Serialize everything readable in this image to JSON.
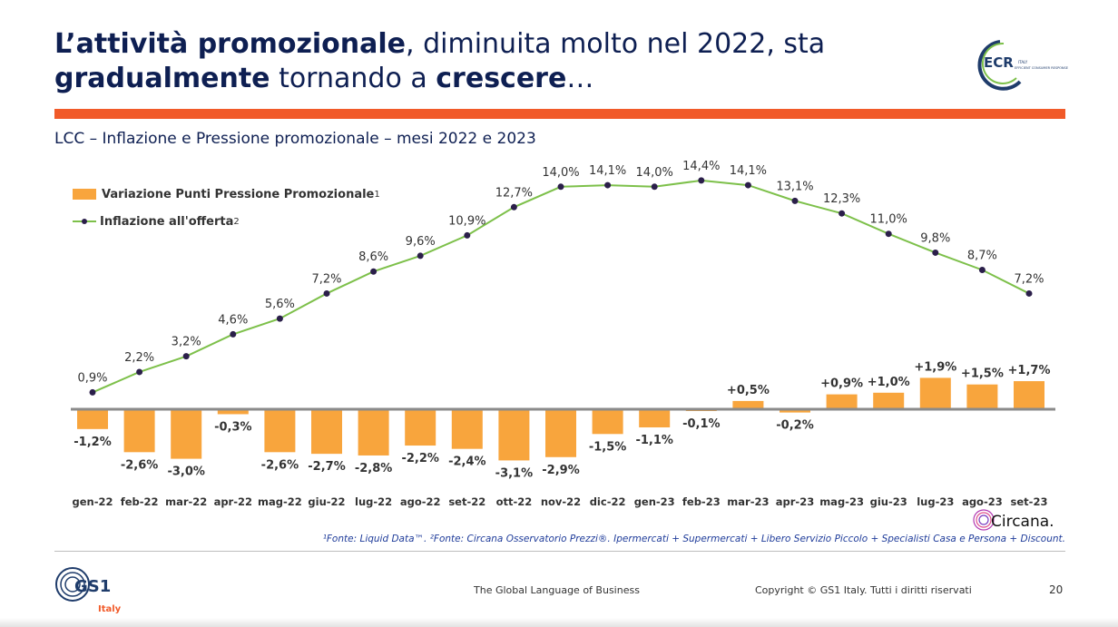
{
  "title": {
    "part1_bold": "L’attività promozionale",
    "part2": ", diminuita molto nel 2022, sta ",
    "part3_bold": "gradualmente",
    "part4": " tornando a ",
    "part5_bold": "crescere",
    "part6": "…"
  },
  "subtitle": "LCC – Inflazione e Pressione promozionale – mesi 2022 e 2023",
  "legend": {
    "bar_label": "Variazione Punti Pressione Promozionale",
    "bar_sup": "1",
    "line_label": "Inflazione all'offerta",
    "line_sup": "2"
  },
  "chart_data": {
    "type": "bar+line",
    "categories": [
      "gen-22",
      "feb-22",
      "mar-22",
      "apr-22",
      "mag-22",
      "giu-22",
      "lug-22",
      "ago-22",
      "set-22",
      "ott-22",
      "nov-22",
      "dic-22",
      "gen-23",
      "feb-23",
      "mar-23",
      "apr-23",
      "mag-23",
      "giu-23",
      "lug-23",
      "ago-23",
      "set-23"
    ],
    "series": [
      {
        "name": "Variazione Punti Pressione Promozionale",
        "kind": "bar",
        "color": "#f8a53d",
        "values": [
          -1.2,
          -2.6,
          -3.0,
          -0.3,
          -2.6,
          -2.7,
          -2.8,
          -2.2,
          -2.4,
          -3.1,
          -2.9,
          -1.5,
          -1.1,
          -0.1,
          0.5,
          -0.2,
          0.9,
          1.0,
          1.9,
          1.5,
          1.7
        ],
        "labels": [
          "-1,2%",
          "-2,6%",
          "-3,0%",
          "-0,3%",
          "-2,6%",
          "-2,7%",
          "-2,8%",
          "-2,2%",
          "-2,4%",
          "-3,1%",
          "-2,9%",
          "-1,5%",
          "-1,1%",
          "-0,1%",
          "+0,5%",
          "-0,2%",
          "+0,9%",
          "+1,0%",
          "+1,9%",
          "+1,5%",
          "+1,7%"
        ]
      },
      {
        "name": "Inflazione all'offerta",
        "kind": "line",
        "color": "#7dc04a",
        "marker_color": "#2b1f4a",
        "values": [
          0.9,
          2.2,
          3.2,
          4.6,
          5.6,
          7.2,
          8.6,
          9.6,
          10.9,
          12.7,
          14.0,
          14.1,
          14.0,
          14.4,
          14.1,
          13.1,
          12.3,
          11.0,
          9.8,
          8.7,
          7.2
        ],
        "labels": [
          "0,9%",
          "2,2%",
          "3,2%",
          "4,6%",
          "5,6%",
          "7,2%",
          "8,6%",
          "9,6%",
          "10,9%",
          "12,7%",
          "14,0%",
          "14,1%",
          "14,0%",
          "14,4%",
          "14,1%",
          "13,1%",
          "12,3%",
          "11,0%",
          "9,8%",
          "8,7%",
          "7,2%"
        ]
      }
    ],
    "legend_position": "top-left",
    "grid": false
  },
  "source_note": "¹Fonte: Liquid Data™. ²Fonte: Circana Osservatorio Prezzi®. Ipermercati + Supermercati + Libero Servizio Piccolo + Specialisti Casa e Persona + Discount.",
  "logos": {
    "ecr_text": "ECR",
    "ecr_sub": "ITALY",
    "ecr_tag": "EFFICIENT CONSUMER RESPONSE",
    "circana": "Circana.",
    "gs1": "GS1",
    "gs1_sub": "Italy"
  },
  "footer": {
    "tagline": "The Global Language of Business",
    "copyright": "Copyright © GS1 Italy. Tutti i diritti riservati",
    "page_number": "20"
  },
  "colors": {
    "title": "#0e1f52",
    "accent_rule": "#f15a29",
    "bar": "#f8a53d",
    "line": "#7dc04a",
    "marker": "#2b1f4a",
    "axis": "#8a8a8a"
  }
}
